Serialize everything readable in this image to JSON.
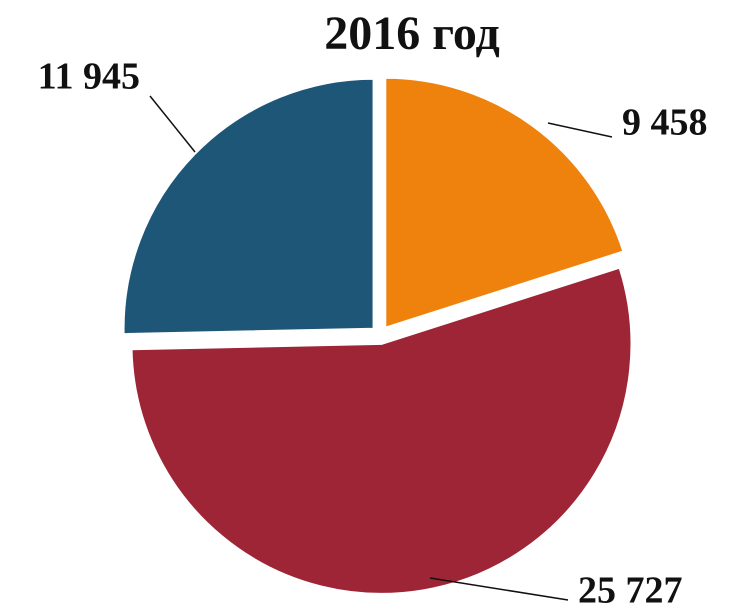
{
  "chart_data": {
    "type": "pie",
    "title": "2016 год",
    "categories": [
      null,
      null,
      null
    ],
    "values": [
      9458,
      25727,
      11945
    ],
    "value_labels": [
      "9 458",
      "25 727",
      "11 945"
    ],
    "colors": [
      "#ef820d",
      "#9e2536",
      "#1e5678"
    ]
  }
}
